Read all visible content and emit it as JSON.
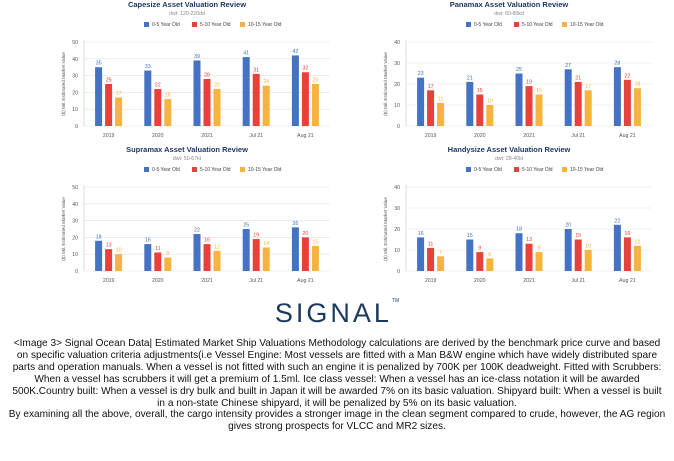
{
  "chart_data": [
    {
      "type": "bar",
      "title": "Capesize Asset Valuation Review",
      "subtitle": "dwt: 120-220dd",
      "ylabel": "($) Mil. Estimated Market Value",
      "categories": [
        "2019",
        "2020",
        "2021",
        "Jul 21",
        "Aug 21"
      ],
      "series": [
        {
          "name": "0-5 Year Old",
          "color": "#4472c4",
          "values": [
            35,
            33,
            39,
            41,
            42
          ]
        },
        {
          "name": "5-10 Year Old",
          "color": "#e8413c",
          "values": [
            25,
            22,
            28,
            31,
            32
          ]
        },
        {
          "name": "10-15 Year Old",
          "color": "#f6b33e",
          "values": [
            17,
            16,
            22,
            24,
            25
          ]
        }
      ],
      "ylim": [
        0,
        50
      ],
      "yticks": [
        0,
        10,
        20,
        30,
        40,
        50
      ],
      "grid": true,
      "legend": "top-center"
    },
    {
      "type": "bar",
      "title": "Panamax Asset Valuation Review",
      "subtitle": "dwt: 60-80kd",
      "ylabel": "($) Mil. Estimated Market Value",
      "categories": [
        "2019",
        "2020",
        "2021",
        "Jul 21",
        "Aug 21"
      ],
      "series": [
        {
          "name": "0-5 Year Old",
          "color": "#4472c4",
          "values": [
            23,
            21,
            25,
            27,
            28
          ]
        },
        {
          "name": "5-10 Year Old",
          "color": "#e8413c",
          "values": [
            17,
            15,
            19,
            21,
            22
          ]
        },
        {
          "name": "10-15 Year Old",
          "color": "#f6b33e",
          "values": [
            11,
            10,
            15,
            17,
            18
          ]
        }
      ],
      "ylim": [
        0,
        40
      ],
      "yticks": [
        0,
        10,
        20,
        30,
        40
      ],
      "grid": true,
      "legend": "top-center"
    },
    {
      "type": "bar",
      "title": "Supramax Asset Valuation Review",
      "subtitle": "dwt: 50-67kt",
      "ylabel": "($) Mil. Estimated Market Value",
      "categories": [
        "2019",
        "2020",
        "2021",
        "Jul 21",
        "Aug 21"
      ],
      "series": [
        {
          "name": "0-5 Year Old",
          "color": "#4472c4",
          "values": [
            18,
            16,
            22,
            25,
            26
          ]
        },
        {
          "name": "5-10 Year Old",
          "color": "#e8413c",
          "values": [
            13,
            11,
            16,
            19,
            20
          ]
        },
        {
          "name": "10-15 Year Old",
          "color": "#f6b33e",
          "values": [
            10,
            8,
            12,
            14,
            15
          ]
        }
      ],
      "ylim": [
        0,
        50
      ],
      "yticks": [
        0,
        10,
        20,
        30,
        40,
        50
      ],
      "grid": true,
      "legend": "top-center"
    },
    {
      "type": "bar",
      "title": "Handysize Asset Valuation Review",
      "subtitle": "dwt: 28-40kt",
      "ylabel": "($) Mil. Estimated Market Value",
      "categories": [
        "2019",
        "2020",
        "2021",
        "Jul 21",
        "Aug 21"
      ],
      "series": [
        {
          "name": "0-5 Year Old",
          "color": "#4472c4",
          "values": [
            16,
            15,
            18,
            20,
            22
          ]
        },
        {
          "name": "5-10 Year Old",
          "color": "#e8413c",
          "values": [
            11,
            9,
            13,
            15,
            16
          ]
        },
        {
          "name": "10-15 Year Old",
          "color": "#f6b33e",
          "values": [
            7,
            6,
            9,
            10,
            12
          ]
        }
      ],
      "ylim": [
        0,
        40
      ],
      "yticks": [
        0,
        10,
        20,
        30,
        40
      ],
      "grid": true,
      "legend": "top-center"
    }
  ],
  "logo": {
    "text": "SIGNAL",
    "mark": "TM"
  },
  "caption": {
    "line1": "<Image 3> Signal Ocean Data| Estimated Market Ship Valuations Methodology calculations are derived by the benchmark price curve and based on specific valuation criteria adjustments(i.e Vessel Engine: Most vessels are fitted with a Man B&W engine which have widely distributed spare parts and operation manuals. When a vessel is not fitted with such an engine it is penalized by 700K per 100K deadweight. Fitted with Scrubbers: When a vessel has scrubbers it will get a premium of 1.5ml. Ice class vessel: When a vessel has an ice-class notation it will be awarded 500K.Country built: When a vessel is dry bulk and built in Japan it will be awarded 7% on its basic valuation. Shipyard built: When a vessel is built in a non-state Chinese shipyard, it will be penalized by 5% on its basic valuation.",
    "line2": "By examining all the above, overall, the cargo intensity provides a stronger image in the clean segment compared to crude, however, the AG region gives strong prospects for VLCC and MR2 sizes."
  }
}
